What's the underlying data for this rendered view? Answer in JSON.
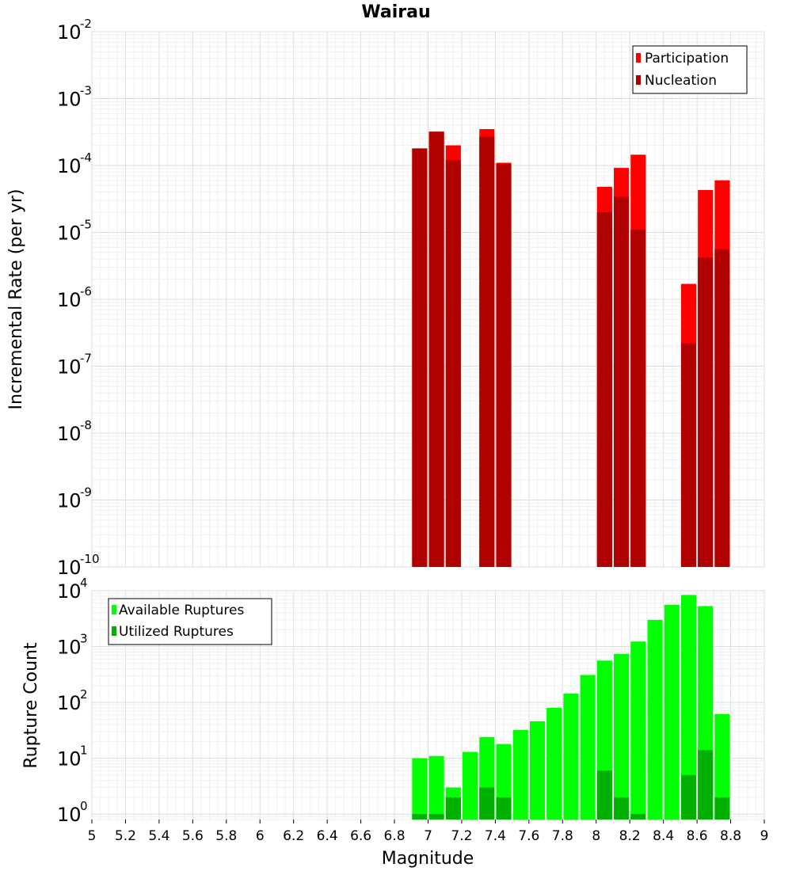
{
  "chart_data": [
    {
      "type": "bar",
      "title": "Wairau",
      "xlabel": "",
      "ylabel": "Incremental Rate (per yr)",
      "yscale": "log",
      "xlim": [
        5,
        9
      ],
      "ylim": [
        1e-10,
        0.01
      ],
      "y_tick_exponents": [
        "-10",
        "-9",
        "-8",
        "-7",
        "-6",
        "-5",
        "-4",
        "-3",
        "-2"
      ],
      "grid": true,
      "legend_position": "top-right",
      "bar_width": 0.09,
      "series": [
        {
          "name": "Participation",
          "color": "#ff0000",
          "x": [
            6.95,
            7.05,
            7.15,
            7.35,
            7.45,
            8.05,
            8.15,
            8.25,
            8.55,
            8.65,
            8.75
          ],
          "values": [
            0.00018,
            0.00032,
            0.0002,
            0.00035,
            0.00011,
            4.8e-05,
            9.2e-05,
            0.000145,
            1.7e-06,
            4.3e-05,
            6e-05
          ]
        },
        {
          "name": "Nucleation",
          "color": "#b00000",
          "x": [
            6.95,
            7.05,
            7.15,
            7.35,
            7.45,
            8.05,
            8.15,
            8.25,
            8.55,
            8.65,
            8.75
          ],
          "values": [
            0.00018,
            0.00032,
            0.00012,
            0.00027,
            0.000105,
            2e-05,
            3.4e-05,
            1.1e-05,
            2.2e-07,
            4.2e-06,
            5.6e-06
          ]
        }
      ]
    },
    {
      "type": "bar",
      "title": "",
      "xlabel": "Magnitude",
      "ylabel": "Rupture Count",
      "yscale": "log",
      "xlim": [
        5,
        9
      ],
      "ylim": [
        0.8,
        10000
      ],
      "y_tick_exponents": [
        "0",
        "1",
        "2",
        "3",
        "4"
      ],
      "x_tick_labels": [
        "5",
        "5.2",
        "5.4",
        "5.6",
        "5.8",
        "6",
        "6.2",
        "6.4",
        "6.6",
        "6.8",
        "7",
        "7.2",
        "7.4",
        "7.6",
        "7.8",
        "8",
        "8.2",
        "8.4",
        "8.6",
        "8.8",
        "9"
      ],
      "grid": true,
      "legend_position": "top-left",
      "bar_width": 0.09,
      "series": [
        {
          "name": "Available Ruptures",
          "color": "#00ff00",
          "x": [
            6.95,
            7.05,
            7.15,
            7.25,
            7.35,
            7.45,
            7.55,
            7.65,
            7.75,
            7.85,
            7.95,
            8.05,
            8.15,
            8.25,
            8.35,
            8.45,
            8.55,
            8.65,
            8.75
          ],
          "values": [
            10,
            11,
            3,
            13,
            24,
            18,
            32,
            46,
            80,
            144,
            310,
            560,
            740,
            1230,
            3000,
            5600,
            8400,
            5300,
            62
          ]
        },
        {
          "name": "Utilized Ruptures",
          "color": "#00b000",
          "x": [
            6.95,
            7.05,
            7.15,
            7.35,
            7.45,
            8.05,
            8.15,
            8.25,
            8.55,
            8.65,
            8.75
          ],
          "values": [
            1,
            1,
            2,
            3,
            2,
            6,
            2,
            1,
            5,
            14,
            2
          ]
        }
      ]
    }
  ]
}
